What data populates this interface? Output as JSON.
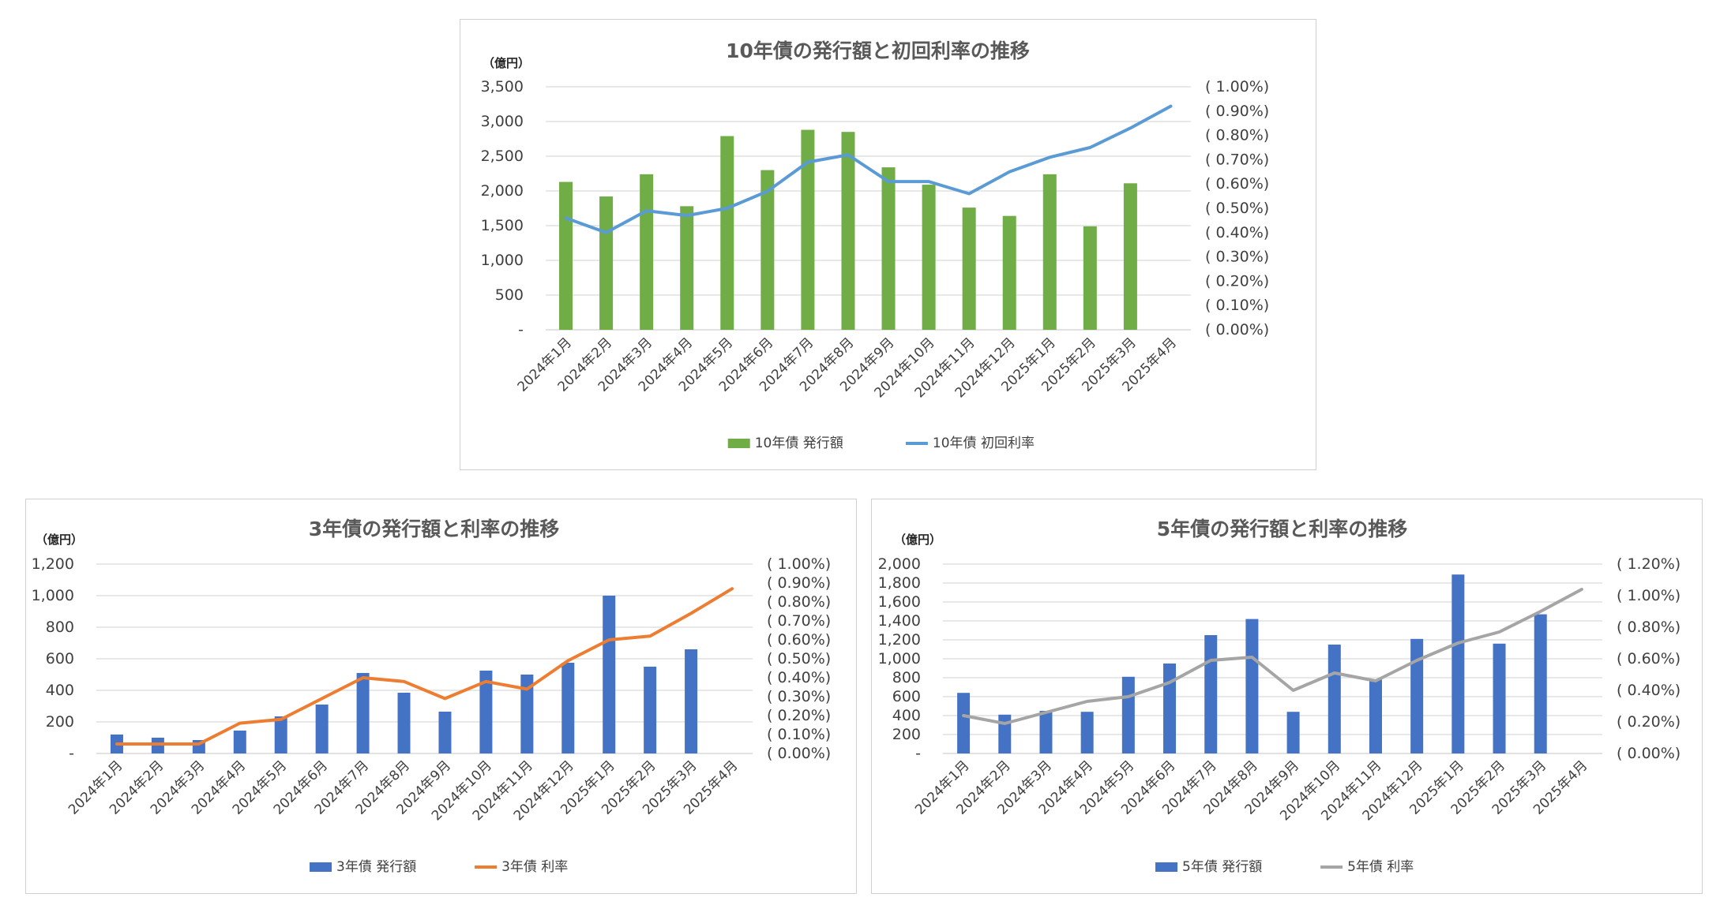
{
  "chart_data": [
    {
      "type": "bar",
      "title": "10年債の発行額と初回利率の推移",
      "y_unit_label": "（億円）",
      "categories": [
        "2024年1月",
        "2024年2月",
        "2024年3月",
        "2024年4月",
        "2024年5月",
        "2024年6月",
        "2024年7月",
        "2024年8月",
        "2024年9月",
        "2024年10月",
        "2024年11月",
        "2024年12月",
        "2025年1月",
        "2025年2月",
        "2025年3月",
        "2025年4月"
      ],
      "series": [
        {
          "name": "10年債 発行額",
          "type": "bar",
          "axis": "left",
          "color": "#70ad47",
          "values": [
            2130,
            1920,
            2240,
            1780,
            2790,
            2300,
            2880,
            2850,
            2340,
            2090,
            1760,
            1640,
            2240,
            1490,
            2110,
            null
          ]
        },
        {
          "name": "10年債 初回利率",
          "type": "line",
          "axis": "right",
          "color": "#5b9bd5",
          "values": [
            0.46,
            0.4,
            0.49,
            0.47,
            0.5,
            0.57,
            0.69,
            0.72,
            0.61,
            0.61,
            0.56,
            0.65,
            0.71,
            0.75,
            0.83,
            0.92
          ]
        }
      ],
      "ylim": [
        0,
        3500
      ],
      "y_ticks": [
        "-",
        "500",
        "1,000",
        "1,500",
        "2,000",
        "2,500",
        "3,000",
        "3,500"
      ],
      "y2lim": [
        0,
        1.0
      ],
      "y2_ticks": [
        "( 0.00%)",
        "( 0.10%)",
        "( 0.20%)",
        "( 0.30%)",
        "( 0.40%)",
        "( 0.50%)",
        "( 0.60%)",
        "( 0.70%)",
        "( 0.80%)",
        "( 0.90%)",
        "( 1.00%)"
      ],
      "grid": true,
      "legend_position": "bottom"
    },
    {
      "type": "bar",
      "title": "3年債の発行額と利率の推移",
      "y_unit_label": "（億円）",
      "categories": [
        "2024年1月",
        "2024年2月",
        "2024年3月",
        "2024年4月",
        "2024年5月",
        "2024年6月",
        "2024年7月",
        "2024年8月",
        "2024年9月",
        "2024年10月",
        "2024年11月",
        "2024年12月",
        "2025年1月",
        "2025年2月",
        "2025年3月",
        "2025年4月"
      ],
      "series": [
        {
          "name": "3年債 発行額",
          "type": "bar",
          "axis": "left",
          "color": "#4472c4",
          "values": [
            120,
            100,
            85,
            145,
            235,
            310,
            510,
            385,
            265,
            525,
            500,
            575,
            1000,
            550,
            660,
            null
          ]
        },
        {
          "name": "3年債 利率",
          "type": "line",
          "axis": "right",
          "color": "#ed7d31",
          "values": [
            0.05,
            0.05,
            0.05,
            0.16,
            0.18,
            0.29,
            0.4,
            0.38,
            0.29,
            0.38,
            0.34,
            0.49,
            0.6,
            0.62,
            0.74,
            0.87
          ]
        }
      ],
      "ylim": [
        0,
        1200
      ],
      "y_ticks": [
        "-",
        "200",
        "400",
        "600",
        "800",
        "1,000",
        "1,200"
      ],
      "y2lim": [
        0,
        1.0
      ],
      "y2_ticks": [
        "( 0.00%)",
        "( 0.10%)",
        "( 0.20%)",
        "( 0.30%)",
        "( 0.40%)",
        "( 0.50%)",
        "( 0.60%)",
        "( 0.70%)",
        "( 0.80%)",
        "( 0.90%)",
        "( 1.00%)"
      ],
      "grid": true,
      "legend_position": "bottom"
    },
    {
      "type": "bar",
      "title": "5年債の発行額と利率の推移",
      "y_unit_label": "（億円）",
      "categories": [
        "2024年1月",
        "2024年2月",
        "2024年3月",
        "2024年4月",
        "2024年5月",
        "2024年6月",
        "2024年7月",
        "2024年8月",
        "2024年9月",
        "2024年10月",
        "2024年11月",
        "2024年12月",
        "2025年1月",
        "2025年2月",
        "2025年3月",
        "2025年4月"
      ],
      "series": [
        {
          "name": "5年債 発行額",
          "type": "bar",
          "axis": "left",
          "color": "#4472c4",
          "values": [
            640,
            410,
            450,
            440,
            810,
            950,
            1250,
            1420,
            440,
            1150,
            780,
            1210,
            1890,
            1160,
            1470,
            null
          ]
        },
        {
          "name": "5年債 利率",
          "type": "line",
          "axis": "right",
          "color": "#a5a5a5",
          "values": [
            0.24,
            0.19,
            0.26,
            0.33,
            0.36,
            0.45,
            0.59,
            0.61,
            0.4,
            0.51,
            0.46,
            0.59,
            0.7,
            0.77,
            0.9,
            1.04
          ]
        }
      ],
      "ylim": [
        0,
        2000
      ],
      "y_ticks": [
        "-",
        "200",
        "400",
        "600",
        "800",
        "1,000",
        "1,200",
        "1,400",
        "1,600",
        "1,800",
        "2,000"
      ],
      "y2lim": [
        0,
        1.2
      ],
      "y2_ticks": [
        "( 0.00%)",
        "( 0.20%)",
        "( 0.40%)",
        "( 0.60%)",
        "( 0.80%)",
        "( 1.00%)",
        "( 1.20%)"
      ],
      "grid": true,
      "legend_position": "bottom"
    }
  ]
}
